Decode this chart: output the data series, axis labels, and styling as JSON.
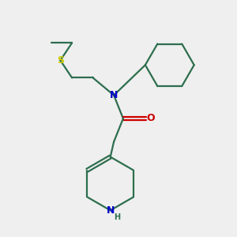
{
  "background_color": "#efefef",
  "bond_color": "#2d6e4e",
  "N_color": "#0000cc",
  "O_color": "#cc0000",
  "S_color": "#cccc00",
  "line_width": 1.6,
  "fig_size": [
    3.0,
    3.0
  ],
  "dpi": 100,
  "xlim": [
    0,
    10
  ],
  "ylim": [
    0,
    10
  ],
  "font_size_atom": 9,
  "font_size_H": 7
}
